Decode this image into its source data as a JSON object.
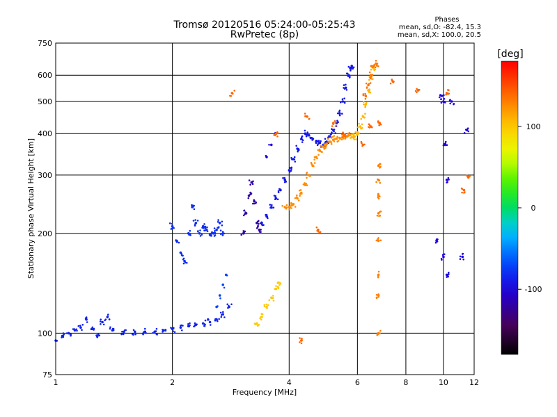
{
  "chart_data": {
    "type": "scatter",
    "title": "Tromsø 20120516 05:24:00-05:25:43",
    "subtitle": "RwPretec (8p)",
    "stats": {
      "heading": "Phases",
      "line1": "mean, sd,O: -82.4, 15.3",
      "line2": "mean, sd,X: 100.0, 20.5"
    },
    "xlabel": "Frequency [MHz]",
    "ylabel": "Stationary phase Virtual Height [km]",
    "x_scale": "log",
    "y_scale": "log",
    "xlim": [
      1,
      12
    ],
    "ylim": [
      75,
      750
    ],
    "x_ticks": [
      1,
      2,
      4,
      6,
      8,
      10,
      12
    ],
    "y_ticks": [
      75,
      100,
      200,
      300,
      400,
      500,
      600,
      750
    ],
    "grid": true,
    "colorbar": {
      "label": "[deg]",
      "range": [
        -180,
        180
      ],
      "ticks": [
        100,
        0,
        -100
      ],
      "colormap": "rainbow"
    },
    "series": [
      {
        "x": [
          1.0,
          1.04,
          1.08,
          1.12,
          1.16,
          1.2,
          1.24,
          1.28,
          1.32,
          1.36
        ],
        "y": [
          95,
          98,
          100,
          102,
          104,
          110,
          103,
          98,
          108,
          112
        ],
        "phase": -85
      },
      {
        "x": [
          1.4,
          1.5,
          1.6,
          1.7,
          1.8,
          1.9,
          2.0,
          2.1,
          2.2,
          2.3,
          2.4,
          2.5,
          2.6,
          2.7,
          2.8
        ],
        "y": [
          102,
          101,
          101,
          101,
          101,
          102,
          103,
          104,
          105,
          106,
          107,
          108,
          110,
          114,
          120
        ],
        "phase": -85
      },
      {
        "x": [
          2.0,
          2.05,
          2.1,
          2.15,
          2.2,
          2.25,
          2.3,
          2.35,
          2.4,
          2.45,
          2.5,
          2.55,
          2.6,
          2.65,
          2.7
        ],
        "y": [
          210,
          190,
          175,
          165,
          200,
          240,
          215,
          200,
          210,
          205,
          198,
          200,
          205,
          215,
          200
        ],
        "phase": -80
      },
      {
        "x": [
          2.6,
          2.65,
          2.7,
          2.75
        ],
        "y": [
          120,
          130,
          140,
          150
        ],
        "phase": -70
      },
      {
        "x": [
          3.05,
          3.1,
          3.15,
          3.2,
          3.25,
          3.3,
          3.35
        ],
        "y": [
          200,
          230,
          260,
          285,
          250,
          215,
          205
        ],
        "phase": -120
      },
      {
        "x": [
          3.4,
          3.5,
          3.6,
          3.7,
          3.8,
          3.9,
          4.0,
          4.1,
          4.2,
          4.3,
          4.4,
          4.5,
          4.6,
          4.7,
          4.8,
          4.9,
          5.0,
          5.1,
          5.2,
          5.3,
          5.4,
          5.5,
          5.6,
          5.7,
          5.75,
          5.8
        ],
        "y": [
          215,
          225,
          240,
          255,
          270,
          290,
          310,
          335,
          360,
          385,
          400,
          395,
          385,
          380,
          375,
          370,
          378,
          392,
          410,
          430,
          460,
          500,
          550,
          600,
          630,
          640
        ],
        "phase": -90
      },
      {
        "x": [
          3.9,
          4.0,
          4.1,
          4.2,
          4.3,
          4.4,
          4.5,
          4.6,
          4.7,
          4.8,
          4.9,
          5.0,
          5.1,
          5.2,
          5.3,
          5.4,
          5.5,
          5.6,
          5.7
        ],
        "y": [
          240,
          240,
          245,
          255,
          265,
          280,
          300,
          320,
          340,
          355,
          365,
          372,
          378,
          383,
          386,
          388,
          390,
          392,
          395
        ],
        "phase": 125
      },
      {
        "x": [
          5.8,
          5.9,
          6.0,
          6.1,
          6.2,
          6.3,
          6.4,
          6.5,
          6.6
        ],
        "y": [
          390,
          392,
          398,
          420,
          450,
          490,
          540,
          590,
          630
        ],
        "phase": 108
      },
      {
        "x": [
          6.3,
          6.4,
          6.5,
          6.6,
          6.7
        ],
        "y": [
          520,
          560,
          600,
          640,
          650
        ],
        "phase": 135
      },
      {
        "x": [
          3.3,
          3.4,
          3.5,
          3.6,
          3.7,
          3.75
        ],
        "y": [
          107,
          112,
          120,
          128,
          136,
          142
        ],
        "phase": 100
      },
      {
        "x": [
          3.5,
          3.6,
          3.7
        ],
        "y": [
          340,
          370,
          400
        ],
        "phase": -100
      },
      {
        "x": [
          6.8,
          6.8,
          6.8,
          6.8,
          6.8,
          6.8,
          6.8,
          6.8
        ],
        "y": [
          100,
          130,
          150,
          190,
          230,
          260,
          290,
          320
        ],
        "phase": 130
      },
      {
        "x": [
          10.0,
          10.1,
          10.2,
          10.0,
          10.2,
          9.6,
          10.5,
          11.2,
          11.5,
          9.9
        ],
        "y": [
          500,
          370,
          290,
          170,
          150,
          190,
          500,
          170,
          410,
          520
        ],
        "phase": -100
      },
      {
        "x": [
          8.6,
          10.2,
          11.3,
          11.6,
          2.85,
          3.7,
          4.45,
          4.75,
          5.2,
          5.55,
          6.2,
          6.5,
          4.3,
          6.85,
          7.4
        ],
        "y": [
          540,
          530,
          270,
          295,
          530,
          400,
          450,
          205,
          430,
          395,
          370,
          420,
          95,
          430,
          575
        ],
        "phase": 140
      }
    ]
  }
}
